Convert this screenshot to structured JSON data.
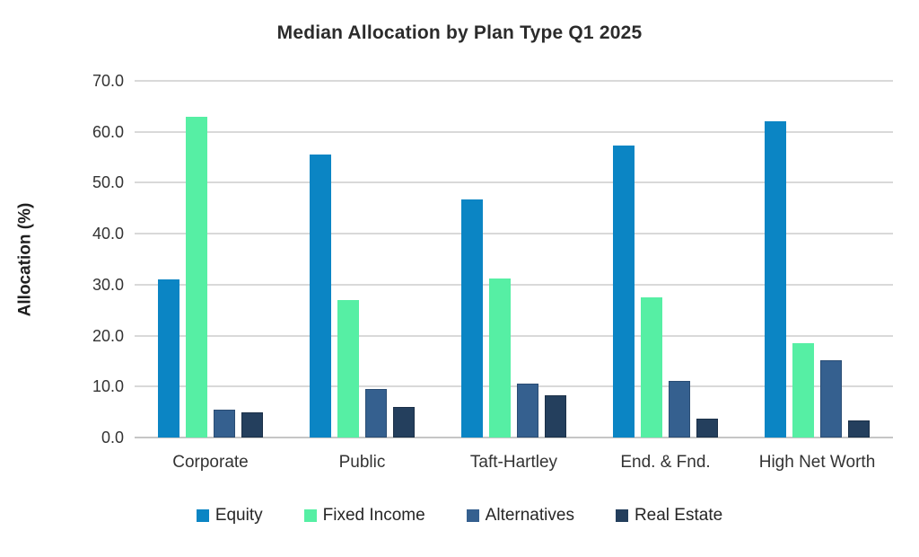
{
  "chart_data": {
    "type": "bar",
    "title": "Median Allocation by Plan Type Q1 2025",
    "ylabel": "Allocation (%)",
    "xlabel": "",
    "ylim": [
      0,
      70
    ],
    "ytick_step": 10,
    "ytick_labels": [
      "0.0",
      "10.0",
      "20.0",
      "30.0",
      "40.0",
      "50.0",
      "60.0",
      "70.0"
    ],
    "grid": true,
    "legend_position": "bottom",
    "categories": [
      "Corporate",
      "Public",
      "Taft-Hartley",
      "End. & Fnd.",
      "High Net Worth"
    ],
    "series": [
      {
        "name": "Equity",
        "color": "#0b85c4",
        "edge": "#0b85c4",
        "values": [
          31.0,
          55.6,
          46.8,
          57.4,
          62.0
        ]
      },
      {
        "name": "Fixed Income",
        "color": "#56efa4",
        "edge": "#56efa4",
        "values": [
          63.0,
          27.0,
          31.2,
          27.5,
          18.5
        ]
      },
      {
        "name": "Alternatives",
        "color": "#35608f",
        "edge": "#2a4d74",
        "values": [
          5.4,
          9.5,
          10.6,
          11.2,
          15.1
        ]
      },
      {
        "name": "Real Estate",
        "color": "#243f5d",
        "edge": "#1b3048",
        "values": [
          4.9,
          6.0,
          8.3,
          3.7,
          3.4
        ]
      }
    ]
  },
  "colors": {
    "gridline": "#d9d9d9",
    "axis_line": "#c6c6c6",
    "text": "#2b2b2b"
  }
}
